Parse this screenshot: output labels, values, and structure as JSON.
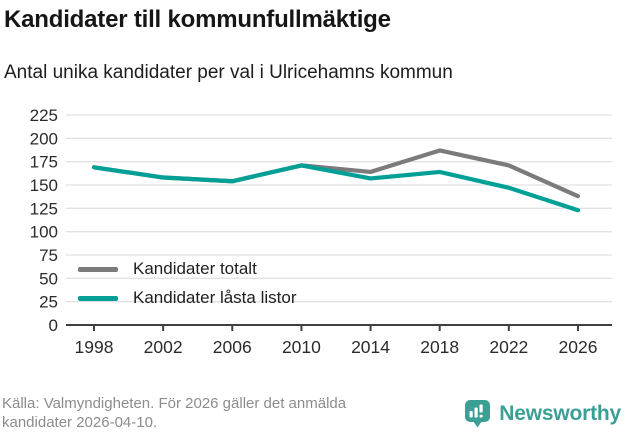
{
  "header": {
    "title": "Kandidater till kommunfullmäktige",
    "subtitle": "Antal unika kandidater per val i Ulricehamns kommun"
  },
  "chart_data": {
    "type": "line",
    "x": [
      1998,
      2002,
      2006,
      2010,
      2014,
      2018,
      2022,
      2026
    ],
    "series": [
      {
        "name": "Kandidater totalt",
        "color": "#7b7b7b",
        "values": [
          169,
          158,
          154,
          171,
          164,
          187,
          171,
          138
        ]
      },
      {
        "name": "Kandidater låsta listor",
        "color": "#00a097",
        "values": [
          169,
          158,
          154,
          171,
          157,
          164,
          147,
          123
        ]
      }
    ],
    "ylim": [
      0,
      225
    ],
    "ytick_step": 25,
    "grid": true,
    "legend_position": "inside-bottom-left",
    "xlabel": "",
    "ylabel": ""
  },
  "footer": {
    "source": "Källa: Valmyndigheten. För 2026 gäller det anmälda kandidater 2026-04-10.",
    "brand": "Newsworthy"
  },
  "colors": {
    "grid": "#e2e2e2",
    "axis": "#3f3f3f",
    "tick_text": "#2b2b2b",
    "brand_teal": "#3c9f95"
  }
}
